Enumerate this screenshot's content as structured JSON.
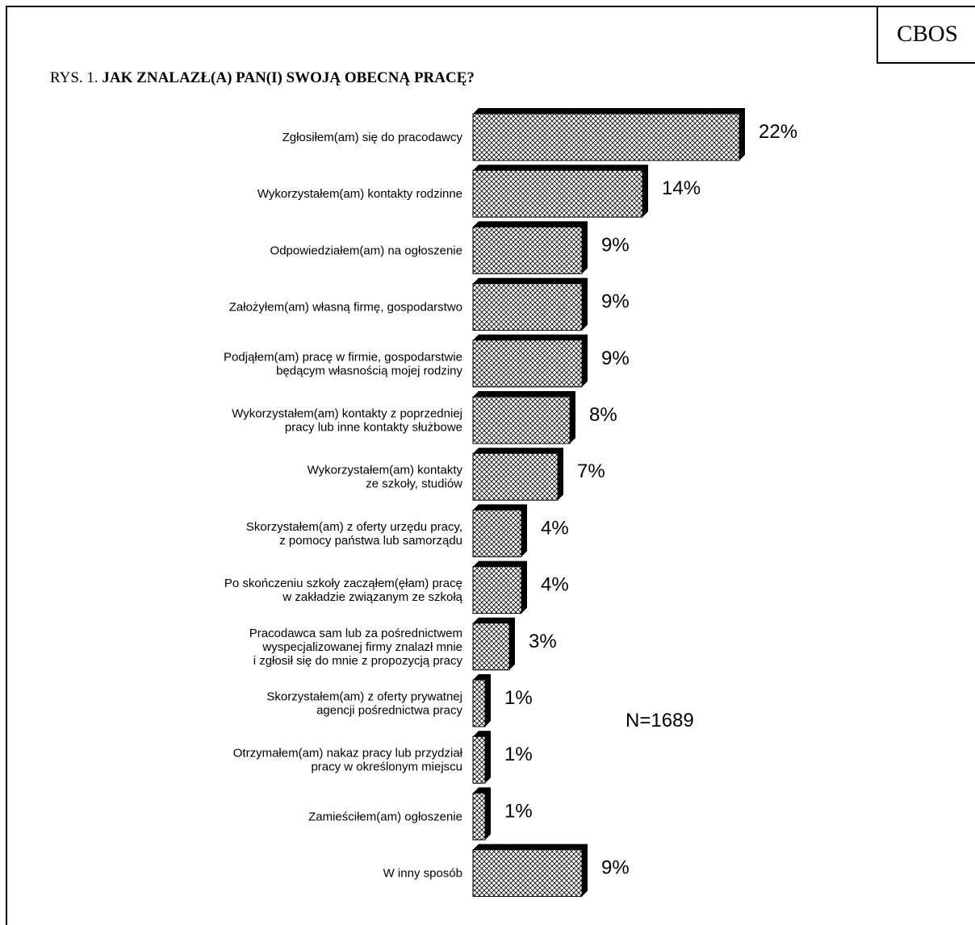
{
  "logo": "CBOS",
  "figure": {
    "prefix": "RYS. 1.",
    "title": "JAK ZNALAZŁ(A) PAN(I) SWOJĄ OBECNĄ PRACĘ?"
  },
  "chart_data": {
    "type": "bar",
    "orientation": "horizontal",
    "title": "JAK ZNALAZŁ(A) PAN(I) SWOJĄ OBECNĄ PRACĘ?",
    "unit": "%",
    "annotation": "N=1689",
    "categories": [
      [
        "Zgłosiłem(am) się do pracodawcy"
      ],
      [
        "Wykorzystałem(am) kontakty rodzinne"
      ],
      [
        "Odpowiedziałem(am) na ogłoszenie"
      ],
      [
        "Założyłem(am) własną firmę, gospodarstwo"
      ],
      [
        "Podjąłem(am) pracę w firmie, gospodarstwie",
        "będącym własnością mojej rodziny"
      ],
      [
        "Wykorzystałem(am) kontakty z poprzedniej",
        "pracy lub inne kontakty służbowe"
      ],
      [
        "Wykorzystałem(am) kontakty",
        "ze szkoły, studiów"
      ],
      [
        "Skorzystałem(am) z oferty urzędu pracy,",
        "z pomocy państwa lub samorządu"
      ],
      [
        "Po skończeniu szkoły zacząłem(ęłam) pracę",
        "w zakładzie związanym ze szkołą"
      ],
      [
        "Pracodawca sam lub za pośrednictwem",
        "wyspecjalizowanej firmy znalazł mnie",
        "i zgłosił się do mnie z propozycją pracy"
      ],
      [
        "Skorzystałem(am) z oferty prywatnej",
        "agencji pośrednictwa pracy"
      ],
      [
        "Otrzymałem(am)  nakaz pracy lub przydział",
        "pracy w określonym miejscu"
      ],
      [
        "Zamieściłem(am) ogłoszenie"
      ],
      [
        "W inny sposób"
      ]
    ],
    "values": [
      22,
      14,
      9,
      9,
      9,
      8,
      7,
      4,
      4,
      3,
      1,
      1,
      1,
      9
    ],
    "value_labels": [
      "22%",
      "14%",
      "9%",
      "9%",
      "9%",
      "8%",
      "7%",
      "4%",
      "4%",
      "3%",
      "1%",
      "1%",
      "1%",
      "9%"
    ],
    "bar_style": "3d-shadow-crosshatch",
    "colors": {
      "bar_fill": "#ffffff",
      "bar_pattern": "#000000",
      "bar_shadow": "#000000"
    }
  }
}
